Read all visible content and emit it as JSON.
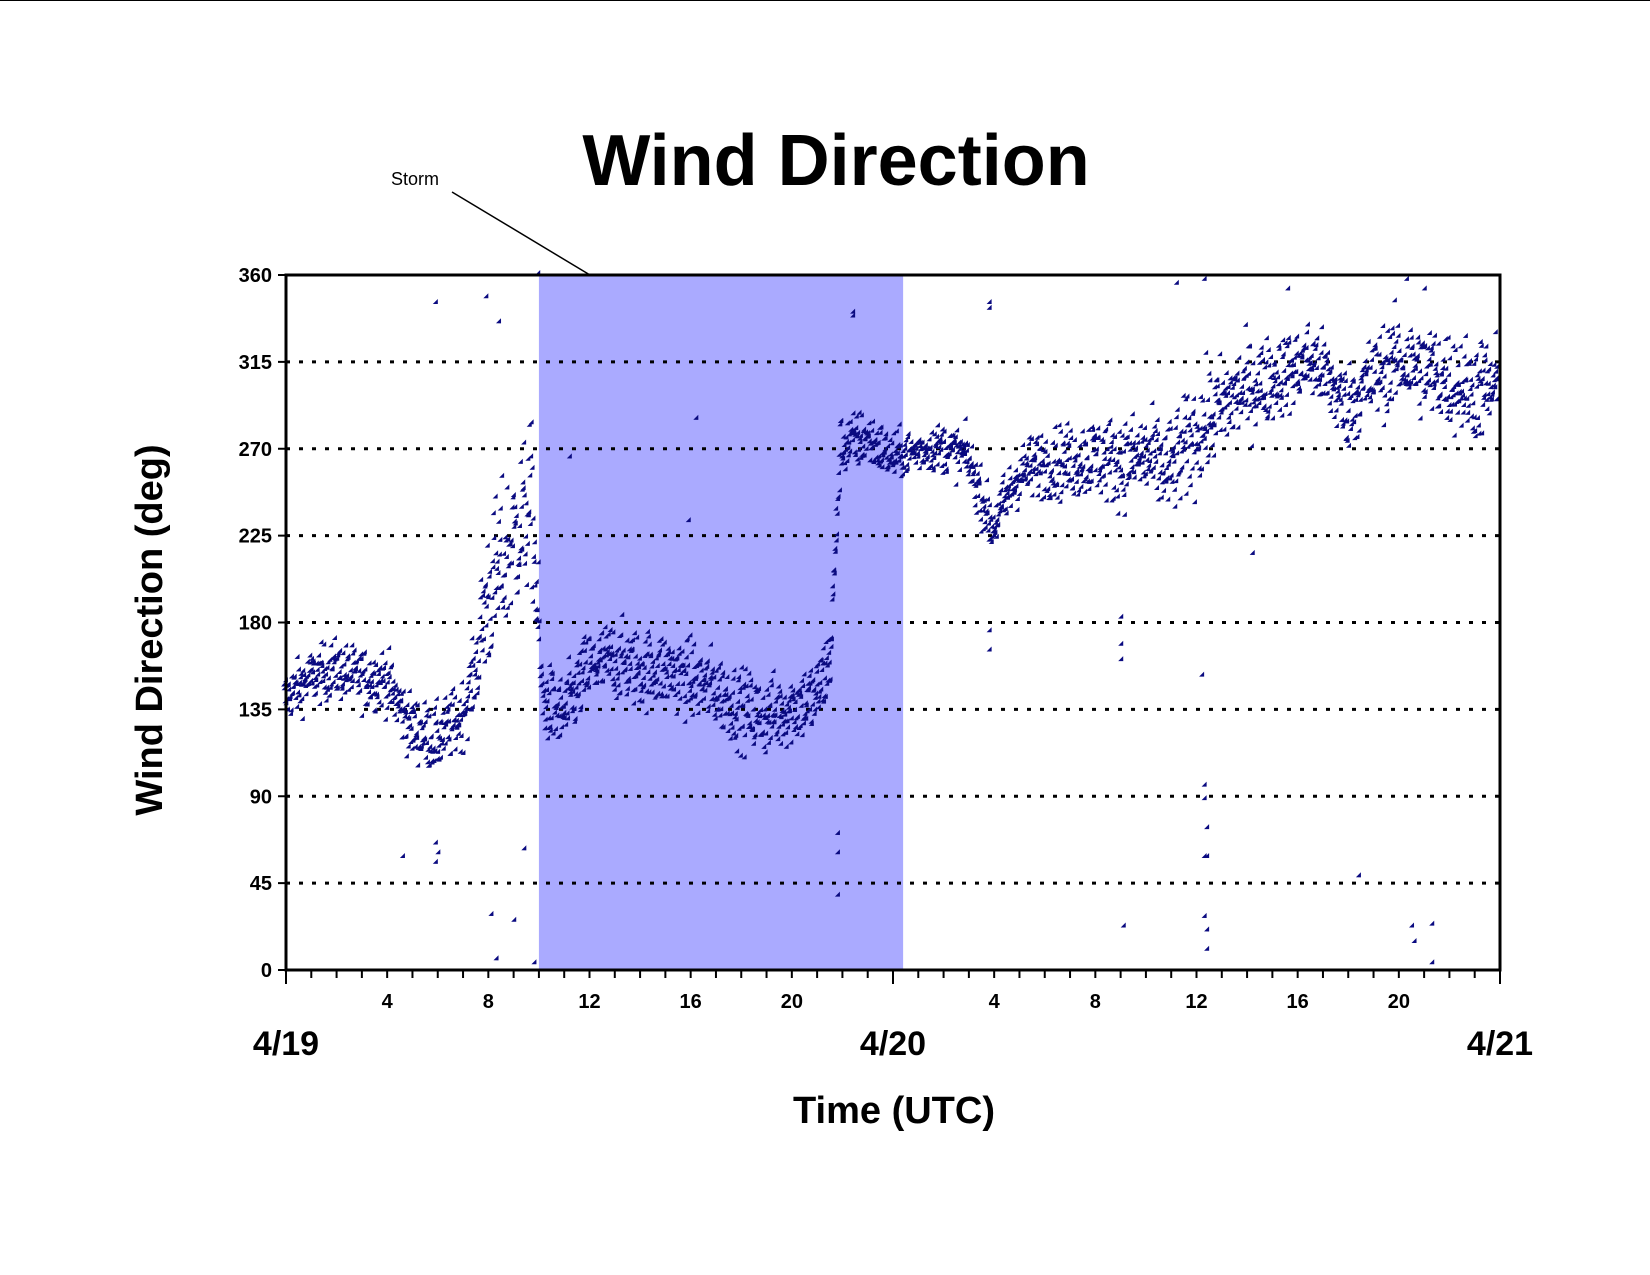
{
  "chart_data": {
    "type": "scatter",
    "title": "Wind Direction",
    "xlabel": "Time (UTC)",
    "ylabel": "Wind Direction (deg)",
    "ylim": [
      0,
      360
    ],
    "yticks": [
      0,
      45,
      90,
      135,
      180,
      225,
      270,
      315,
      360
    ],
    "xlim_hours": [
      0,
      48
    ],
    "xtick_labels": [
      {
        "h": 4,
        "label": "4"
      },
      {
        "h": 8,
        "label": "8"
      },
      {
        "h": 12,
        "label": "12"
      },
      {
        "h": 16,
        "label": "16"
      },
      {
        "h": 20,
        "label": "20"
      },
      {
        "h": 28,
        "label": "4"
      },
      {
        "h": 32,
        "label": "8"
      },
      {
        "h": 36,
        "label": "12"
      },
      {
        "h": 40,
        "label": "16"
      },
      {
        "h": 44,
        "label": "20"
      }
    ],
    "date_labels": [
      {
        "h": 0,
        "label": "4/19"
      },
      {
        "h": 24,
        "label": "4/20"
      },
      {
        "h": 48,
        "label": "4/21"
      }
    ],
    "grid": "horizontal dashed",
    "marker_color": "#0a0a80",
    "storm_shade_color": "#aaaaff",
    "annotation": {
      "text": "Storm",
      "x_start_h": 10.0,
      "x_end_h": 24.4
    },
    "series_trend": [
      [
        0,
        140
      ],
      [
        1,
        150
      ],
      [
        2,
        155
      ],
      [
        3,
        150
      ],
      [
        4,
        150
      ],
      [
        5,
        125
      ],
      [
        6,
        118
      ],
      [
        7,
        130
      ],
      [
        7.5,
        150
      ],
      [
        8,
        190
      ],
      [
        9,
        220
      ],
      [
        9.8,
        240
      ],
      [
        10.2,
        140
      ],
      [
        11,
        130
      ],
      [
        12,
        155
      ],
      [
        13,
        160
      ],
      [
        14,
        155
      ],
      [
        15,
        155
      ],
      [
        16,
        150
      ],
      [
        17,
        145
      ],
      [
        18,
        135
      ],
      [
        19,
        130
      ],
      [
        20,
        135
      ],
      [
        21,
        140
      ],
      [
        21.6,
        160
      ],
      [
        22,
        270
      ],
      [
        23,
        275
      ],
      [
        24,
        265
      ],
      [
        25,
        268
      ],
      [
        26,
        270
      ],
      [
        27,
        265
      ],
      [
        28,
        228
      ],
      [
        29,
        255
      ],
      [
        30,
        262
      ],
      [
        31,
        262
      ],
      [
        32,
        265
      ],
      [
        33,
        262
      ],
      [
        34,
        265
      ],
      [
        35,
        258
      ],
      [
        36,
        275
      ],
      [
        37,
        290
      ],
      [
        38,
        300
      ],
      [
        39,
        305
      ],
      [
        40,
        310
      ],
      [
        40.5,
        315
      ],
      [
        41,
        310
      ],
      [
        42,
        290
      ],
      [
        43,
        305
      ],
      [
        44,
        315
      ],
      [
        45,
        310
      ],
      [
        46,
        305
      ],
      [
        47,
        300
      ],
      [
        48,
        300
      ]
    ],
    "series_spread": [
      [
        0,
        15
      ],
      [
        7.5,
        20
      ],
      [
        8,
        45
      ],
      [
        10,
        45
      ],
      [
        10.2,
        22
      ],
      [
        21.6,
        22
      ],
      [
        22,
        18
      ],
      [
        25,
        12
      ],
      [
        28,
        16
      ],
      [
        36,
        30
      ],
      [
        40,
        22
      ],
      [
        48,
        30
      ]
    ],
    "outliers": [
      [
        6,
        345
      ],
      [
        8,
        348
      ],
      [
        8.5,
        335
      ],
      [
        10.05,
        360
      ],
      [
        11.3,
        265
      ],
      [
        16.3,
        285
      ],
      [
        16,
        232
      ],
      [
        22.5,
        340
      ],
      [
        22.5,
        338
      ],
      [
        27.9,
        345
      ],
      [
        27.9,
        342
      ],
      [
        35.3,
        355
      ],
      [
        36.4,
        357
      ],
      [
        39.7,
        352
      ],
      [
        44.4,
        357
      ],
      [
        45.1,
        352
      ],
      [
        4.7,
        58
      ],
      [
        6,
        55
      ],
      [
        6,
        65
      ],
      [
        6.1,
        60
      ],
      [
        8.2,
        28
      ],
      [
        8.4,
        5
      ],
      [
        9.1,
        25
      ],
      [
        9.5,
        62
      ],
      [
        9.9,
        3
      ],
      [
        21.9,
        70
      ],
      [
        21.9,
        60
      ],
      [
        21.9,
        38
      ],
      [
        27.9,
        165
      ],
      [
        27.9,
        175
      ],
      [
        33.1,
        160
      ],
      [
        33.1,
        168
      ],
      [
        33.1,
        182
      ],
      [
        36.3,
        152
      ],
      [
        36.4,
        95
      ],
      [
        36.4,
        88
      ],
      [
        36.4,
        58
      ],
      [
        36.5,
        58
      ],
      [
        36.5,
        73
      ],
      [
        36.4,
        27
      ],
      [
        36.5,
        20
      ],
      [
        36.5,
        10
      ],
      [
        33.2,
        22
      ],
      [
        42.5,
        48
      ],
      [
        44.6,
        22
      ],
      [
        44.7,
        14
      ],
      [
        45.4,
        23
      ],
      [
        45.4,
        3
      ],
      [
        38.3,
        215
      ]
    ],
    "point_count": 2600
  }
}
